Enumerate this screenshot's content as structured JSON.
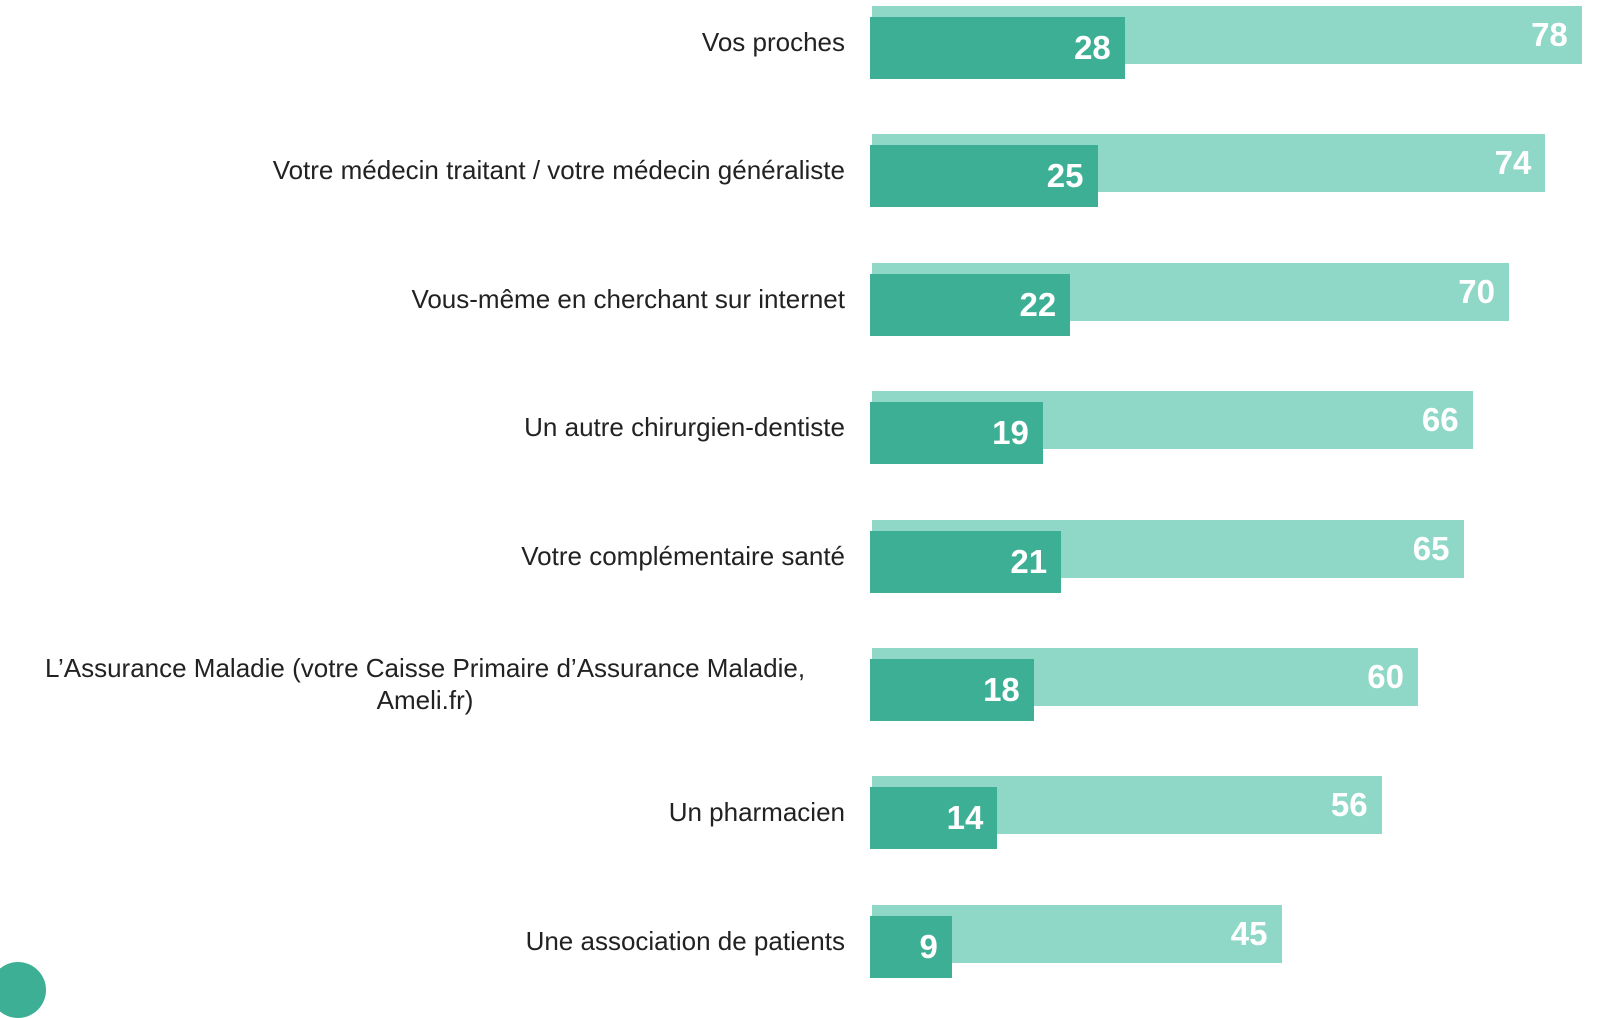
{
  "chart_data": {
    "type": "overlap-bar",
    "categories": [
      "Vos proches",
      "Votre médecin traitant / votre médecin généraliste",
      "Vous-même en cherchant sur internet",
      "Un autre chirurgien-dentiste",
      "Votre complémentaire santé",
      "L’Assurance Maladie (votre Caisse Primaire d’Assurance Maladie, Ameli.fr)",
      "Un pharmacien",
      "Une association de patients"
    ],
    "series": [
      {
        "color": "#8fd7c7",
        "values": [
          78,
          74,
          70,
          66,
          65,
          60,
          56,
          45
        ]
      },
      {
        "color": "#3daf94",
        "values": [
          28,
          25,
          22,
          19,
          21,
          18,
          14,
          9
        ]
      }
    ],
    "logo": "harris"
  }
}
